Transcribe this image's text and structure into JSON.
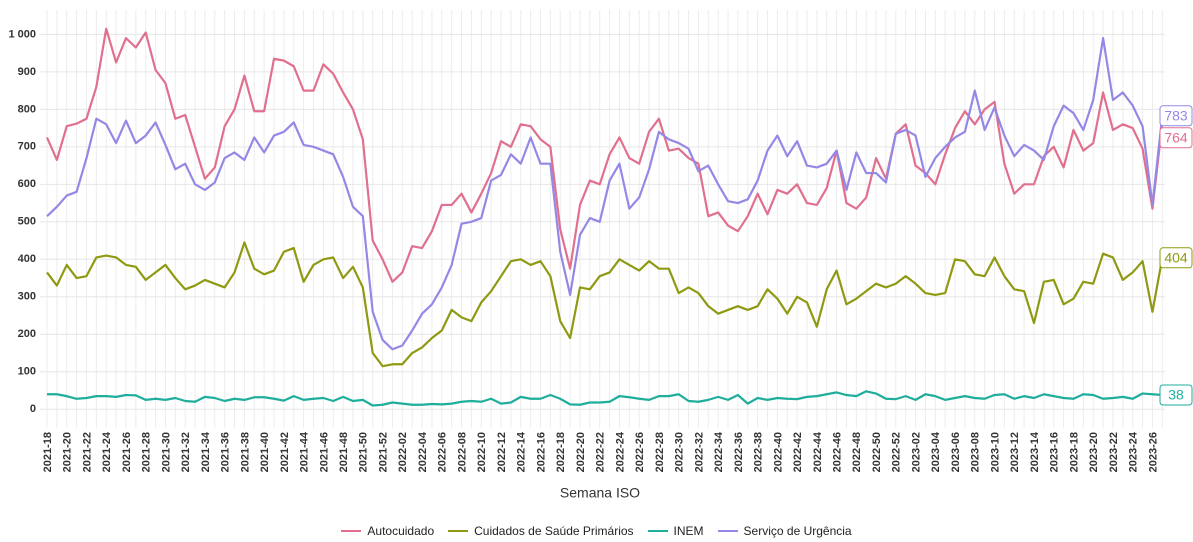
{
  "chart_data": {
    "type": "line",
    "x_label": "Semana ISO",
    "categories": [
      "2021-18",
      null,
      "2021-20",
      null,
      "2021-22",
      null,
      "2021-24",
      null,
      "2021-26",
      null,
      "2021-28",
      null,
      "2021-30",
      null,
      "2021-32",
      null,
      "2021-34",
      null,
      "2021-36",
      null,
      "2021-38",
      null,
      "2021-40",
      null,
      "2021-42",
      null,
      "2021-44",
      null,
      "2021-46",
      null,
      "2021-48",
      null,
      "2021-50",
      null,
      "2021-52",
      null,
      "2022-02",
      null,
      "2022-04",
      null,
      "2022-06",
      null,
      "2022-08",
      null,
      "2022-10",
      null,
      "2022-12",
      null,
      "2022-14",
      null,
      "2022-16",
      null,
      "2022-18",
      null,
      "2022-20",
      null,
      "2022-22",
      null,
      "2022-24",
      null,
      "2022-26",
      null,
      "2022-28",
      null,
      "2022-30",
      null,
      "2022-32",
      null,
      "2022-34",
      null,
      "2022-36",
      null,
      "2022-38",
      null,
      "2022-40",
      null,
      "2022-42",
      null,
      "2022-44",
      null,
      "2022-46",
      null,
      "2022-48",
      null,
      "2022-50",
      null,
      "2022-52",
      null,
      "2023-02",
      null,
      "2023-04",
      null,
      "2023-06",
      null,
      "2023-08",
      null,
      "2023-10",
      null,
      "2023-12",
      null,
      "2023-14",
      null,
      "2023-16",
      null,
      "2023-18",
      null,
      "2023-20",
      null,
      "2023-22",
      null,
      "2023-24",
      null,
      "2023-26",
      null
    ],
    "series": [
      {
        "name": "Autocuidado",
        "color": "#e0708e",
        "values": [
          725,
          665,
          755,
          762,
          775,
          860,
          1015,
          925,
          990,
          965,
          1005,
          905,
          870,
          775,
          785,
          700,
          615,
          645,
          755,
          800,
          890,
          795,
          795,
          935,
          930,
          915,
          850,
          850,
          920,
          895,
          845,
          800,
          720,
          450,
          400,
          340,
          365,
          435,
          430,
          475,
          545,
          545,
          575,
          525,
          575,
          630,
          715,
          700,
          760,
          755,
          720,
          700,
          480,
          375,
          545,
          610,
          600,
          680,
          725,
          670,
          655,
          740,
          775,
          690,
          695,
          670,
          655,
          515,
          525,
          490,
          475,
          515,
          575,
          520,
          585,
          575,
          600,
          550,
          545,
          590,
          690,
          550,
          535,
          565,
          670,
          615,
          735,
          760,
          650,
          630,
          600,
          680,
          750,
          795,
          760,
          800,
          820,
          655,
          575,
          600,
          600,
          675,
          700,
          645,
          745,
          690,
          710,
          845,
          745,
          760,
          750,
          695,
          535,
          764
        ]
      },
      {
        "name": "Cuidados de Saúde Primários",
        "color": "#8f9a12",
        "values": [
          365,
          330,
          385,
          350,
          355,
          405,
          410,
          405,
          385,
          380,
          345,
          365,
          385,
          350,
          320,
          330,
          345,
          335,
          325,
          365,
          445,
          375,
          360,
          370,
          420,
          430,
          340,
          385,
          400,
          405,
          350,
          380,
          325,
          150,
          115,
          120,
          120,
          150,
          165,
          190,
          210,
          265,
          245,
          235,
          285,
          315,
          355,
          395,
          400,
          385,
          395,
          355,
          235,
          190,
          325,
          320,
          355,
          365,
          400,
          385,
          370,
          395,
          375,
          375,
          310,
          325,
          310,
          275,
          255,
          265,
          275,
          265,
          275,
          320,
          295,
          255,
          300,
          285,
          220,
          320,
          370,
          280,
          295,
          315,
          335,
          325,
          335,
          355,
          335,
          310,
          305,
          310,
          400,
          395,
          360,
          355,
          405,
          355,
          320,
          315,
          230,
          340,
          345,
          280,
          295,
          340,
          335,
          415,
          405,
          345,
          365,
          395,
          260,
          404
        ]
      },
      {
        "name": "INEM",
        "color": "#1fae9c",
        "values": [
          40,
          40,
          35,
          28,
          30,
          35,
          35,
          33,
          38,
          37,
          25,
          28,
          25,
          30,
          22,
          20,
          33,
          30,
          22,
          28,
          25,
          32,
          32,
          28,
          23,
          35,
          25,
          28,
          30,
          22,
          33,
          22,
          25,
          10,
          12,
          18,
          15,
          12,
          12,
          14,
          13,
          15,
          20,
          22,
          20,
          28,
          15,
          18,
          33,
          28,
          28,
          38,
          28,
          13,
          12,
          18,
          18,
          20,
          35,
          32,
          28,
          25,
          35,
          35,
          40,
          22,
          20,
          25,
          33,
          25,
          38,
          15,
          30,
          25,
          30,
          28,
          27,
          33,
          35,
          40,
          45,
          38,
          35,
          48,
          42,
          28,
          27,
          35,
          25,
          40,
          35,
          25,
          30,
          35,
          30,
          28,
          38,
          40,
          28,
          35,
          30,
          40,
          35,
          30,
          28,
          40,
          38,
          28,
          30,
          33,
          28,
          42,
          40,
          38
        ]
      },
      {
        "name": "Serviço de Urgência",
        "color": "#9488e6",
        "values": [
          515,
          540,
          570,
          580,
          670,
          775,
          760,
          710,
          770,
          710,
          730,
          765,
          705,
          640,
          655,
          600,
          585,
          605,
          670,
          685,
          665,
          725,
          685,
          730,
          740,
          765,
          705,
          700,
          690,
          680,
          620,
          540,
          515,
          260,
          185,
          160,
          170,
          210,
          255,
          280,
          325,
          385,
          495,
          500,
          510,
          610,
          625,
          680,
          655,
          725,
          655,
          655,
          420,
          305,
          465,
          510,
          500,
          610,
          655,
          535,
          565,
          640,
          740,
          720,
          710,
          695,
          635,
          650,
          600,
          555,
          550,
          560,
          610,
          690,
          730,
          675,
          715,
          650,
          645,
          655,
          690,
          585,
          685,
          630,
          630,
          605,
          735,
          745,
          730,
          620,
          670,
          700,
          725,
          740,
          850,
          745,
          805,
          730,
          675,
          705,
          690,
          665,
          755,
          810,
          790,
          745,
          825,
          990,
          825,
          845,
          810,
          755,
          545,
          783
        ]
      }
    ],
    "ylim": [
      -50,
      1065
    ],
    "yticks": [
      0,
      100,
      200,
      300,
      400,
      500,
      600,
      700,
      800,
      900,
      {
        "value": 1000,
        "label": "1 000"
      }
    ],
    "grid": true
  }
}
